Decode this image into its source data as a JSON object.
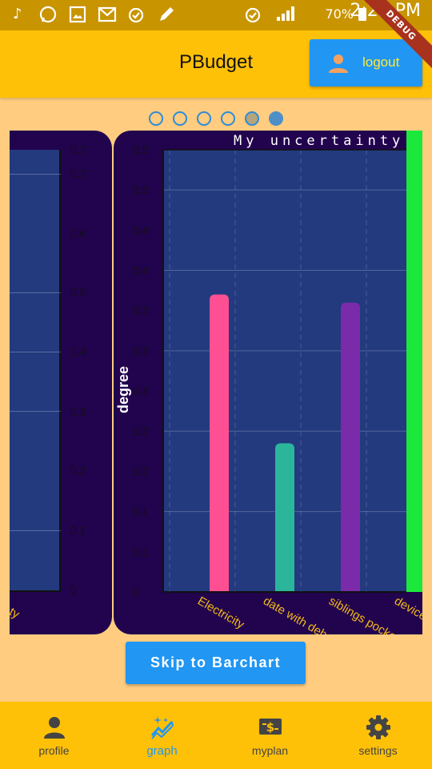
{
  "status_bar": {
    "battery": "70%",
    "time": "2:22 PM",
    "icons": [
      "music-icon",
      "whatsapp-icon",
      "gallery-icon",
      "mail-icon",
      "alarm-icon",
      "edit-icon",
      "alarm-icon",
      "signal-icon",
      "battery-icon"
    ]
  },
  "debug_banner": "DEBUG",
  "app_bar": {
    "title": "PBudget",
    "logout_label": "logout",
    "logout_icon": "person-icon"
  },
  "pager": {
    "count": 6,
    "active_index": 5
  },
  "left_card": {
    "y_ticks": [
      "0.7",
      "0.7",
      "0.6",
      "0.5",
      "0.4",
      "0.3",
      "0.2",
      "0.1",
      "0"
    ],
    "cut_label": "ty"
  },
  "chart_data": {
    "type": "bar",
    "title": "My uncertainty",
    "ylabel": "degree",
    "xlabel": "",
    "categories": [
      "Electricity",
      "date with deborah",
      "siblings pocket money",
      "device s"
    ],
    "values": [
      0.37,
      0.185,
      0.36,
      0.0
    ],
    "colors": [
      "#FF4F93",
      "#2BB59B",
      "#7A2BAA",
      "#1CE83C"
    ],
    "y_tick_labels": [
      "0.5",
      "0.5",
      "0.4",
      "0.4",
      "0.3",
      "0.3",
      "0.3",
      "0.2",
      "0.2",
      "0.1",
      "0.1",
      "0"
    ],
    "ylim": [
      0,
      0.55
    ],
    "grid": true
  },
  "skip_button": "Skip to Barchart",
  "bottom_nav": {
    "items": [
      {
        "label": "profile",
        "icon": "person-icon"
      },
      {
        "label": "graph",
        "icon": "auto-graph-icon"
      },
      {
        "label": "myplan",
        "icon": "money-icon"
      },
      {
        "label": "settings",
        "icon": "gear-icon"
      }
    ],
    "active_index": 1,
    "active_color": "#2196F3"
  }
}
